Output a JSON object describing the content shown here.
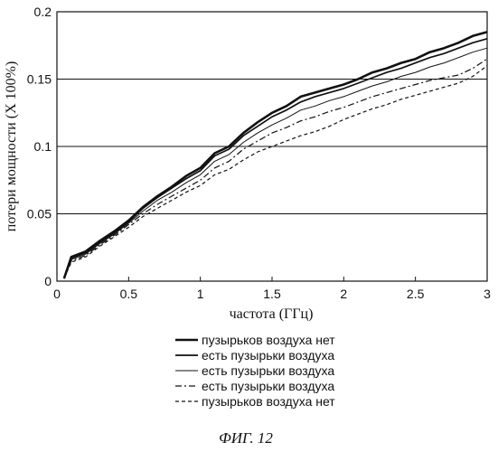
{
  "chart_data": {
    "type": "line",
    "xlabel": "частота (ГГц)",
    "ylabel": "потери мощности (X 100%)",
    "xlim": [
      0,
      3
    ],
    "ylim": [
      0,
      0.2
    ],
    "xticks": [
      "0",
      "0.5",
      "1",
      "1.5",
      "2",
      "2.5",
      "3"
    ],
    "yticks": [
      "0",
      "0.05",
      "0.1",
      "0.15",
      "0.2"
    ],
    "grid": "horizontal",
    "legend_position": "below",
    "x": [
      0.05,
      0.1,
      0.2,
      0.3,
      0.4,
      0.5,
      0.6,
      0.7,
      0.8,
      0.9,
      1.0,
      1.1,
      1.2,
      1.3,
      1.4,
      1.5,
      1.6,
      1.7,
      1.8,
      1.9,
      2.0,
      2.1,
      2.2,
      2.3,
      2.4,
      2.5,
      2.6,
      2.7,
      2.8,
      2.9,
      3.0
    ],
    "series": [
      {
        "name": "пузырьков воздуха нет",
        "style": "solid-thick",
        "values": [
          0.002,
          0.018,
          0.022,
          0.03,
          0.037,
          0.045,
          0.055,
          0.063,
          0.07,
          0.078,
          0.084,
          0.095,
          0.1,
          0.11,
          0.118,
          0.125,
          0.13,
          0.137,
          0.14,
          0.143,
          0.146,
          0.15,
          0.155,
          0.158,
          0.162,
          0.165,
          0.17,
          0.173,
          0.177,
          0.182,
          0.185
        ]
      },
      {
        "name": "есть пузырьки воздуха",
        "style": "solid",
        "values": [
          0.002,
          0.017,
          0.021,
          0.029,
          0.036,
          0.044,
          0.054,
          0.062,
          0.069,
          0.076,
          0.082,
          0.093,
          0.098,
          0.108,
          0.115,
          0.122,
          0.127,
          0.133,
          0.137,
          0.14,
          0.143,
          0.147,
          0.151,
          0.155,
          0.158,
          0.162,
          0.166,
          0.169,
          0.173,
          0.177,
          0.18
        ]
      },
      {
        "name": "есть пузырьки воздуха",
        "style": "solid-thin",
        "values": [
          0.002,
          0.016,
          0.02,
          0.028,
          0.035,
          0.043,
          0.052,
          0.06,
          0.066,
          0.073,
          0.079,
          0.089,
          0.094,
          0.103,
          0.11,
          0.116,
          0.121,
          0.127,
          0.13,
          0.134,
          0.137,
          0.141,
          0.145,
          0.148,
          0.152,
          0.155,
          0.159,
          0.162,
          0.166,
          0.17,
          0.173
        ]
      },
      {
        "name": "есть пузырьки воздуха",
        "style": "dash-dot",
        "values": [
          0.002,
          0.015,
          0.019,
          0.027,
          0.034,
          0.042,
          0.05,
          0.057,
          0.063,
          0.069,
          0.075,
          0.084,
          0.089,
          0.098,
          0.104,
          0.11,
          0.114,
          0.119,
          0.122,
          0.126,
          0.129,
          0.133,
          0.137,
          0.14,
          0.143,
          0.146,
          0.149,
          0.151,
          0.153,
          0.158,
          0.165
        ]
      },
      {
        "name": "пузырьков воздуха нет",
        "style": "dashed",
        "values": [
          0.002,
          0.014,
          0.018,
          0.026,
          0.033,
          0.04,
          0.048,
          0.054,
          0.06,
          0.066,
          0.071,
          0.079,
          0.083,
          0.09,
          0.096,
          0.1,
          0.104,
          0.108,
          0.111,
          0.115,
          0.12,
          0.124,
          0.128,
          0.131,
          0.135,
          0.138,
          0.141,
          0.144,
          0.147,
          0.152,
          0.16
        ]
      }
    ]
  },
  "figure": {
    "caption": "ФИГ. 12"
  }
}
